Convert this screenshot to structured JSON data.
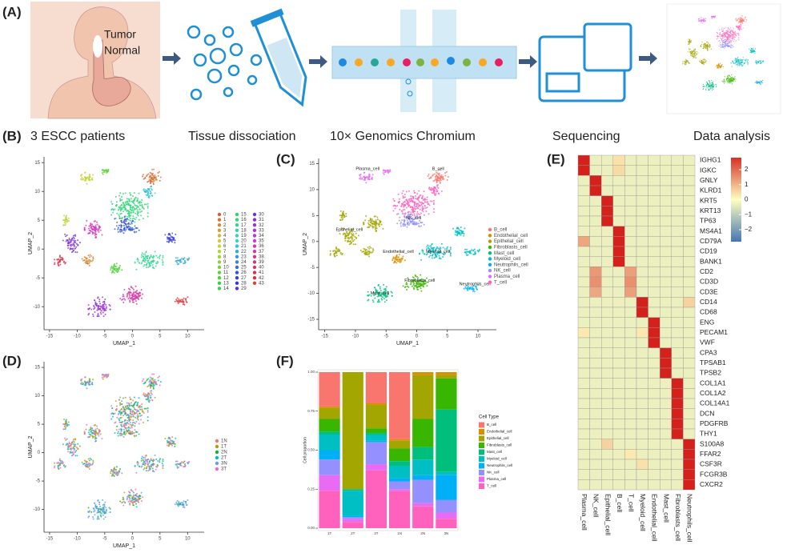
{
  "workflow": {
    "panel_label": "(A)",
    "tumor_label": "Tumor",
    "normal_label": "Normal",
    "steps": [
      "3 ESCC patients",
      "Tissue dissociation",
      "10× Genomics Chromium",
      "Sequencing",
      "Data analysis"
    ]
  },
  "umap_clusters": {
    "panel_label": "(B)",
    "xlabel": "UMAP_1",
    "ylabel": "UMAP_2",
    "xlim": [
      -16,
      13
    ],
    "ylim": [
      -14,
      16
    ],
    "xticks": [
      -15,
      -10,
      -5,
      0,
      5,
      10
    ],
    "yticks": [
      -10,
      -5,
      0,
      5,
      10,
      15
    ],
    "legend": [
      "0",
      "1",
      "2",
      "3",
      "4",
      "5",
      "6",
      "7",
      "8",
      "9",
      "10",
      "11",
      "12",
      "13",
      "14",
      "15",
      "16",
      "17",
      "18",
      "19",
      "20",
      "21",
      "22",
      "23",
      "24",
      "25",
      "26",
      "27",
      "28",
      "29",
      "30",
      "31",
      "32",
      "33",
      "34",
      "35",
      "36",
      "37",
      "38",
      "39",
      "40",
      "41",
      "42",
      "43"
    ]
  },
  "umap_celltypes": {
    "panel_label": "(C)",
    "xlabel": "UMAP_1",
    "ylabel": "UMAP_2",
    "xlim": [
      -16,
      13
    ],
    "ylim": [
      -17,
      16
    ],
    "xticks": [
      -15,
      -10,
      -5,
      0,
      5,
      10
    ],
    "yticks": [
      -15,
      -10,
      -5,
      0,
      5,
      10,
      15
    ],
    "legend": [
      "B_cell",
      "Endothelial_cell",
      "Epithelial_cell",
      "Fibroblasts_cell",
      "Mast_cell",
      "Myeloid_cell",
      "Neutrophils_cell",
      "NK_cell",
      "Plasma_cell",
      "T_cell"
    ],
    "colors": [
      "#F8766D",
      "#D89000",
      "#A3A500",
      "#39B600",
      "#00BF7D",
      "#00BFC4",
      "#00B0F6",
      "#9590FF",
      "#E76BF3",
      "#FF62BC"
    ],
    "annotations": [
      "Plasma_cell",
      "B_cell",
      "NK_cell",
      "Epithelial_cell",
      "Endothelial_cell",
      "Myeloid_cell",
      "Mast_cell",
      "Fibroblasts_cell",
      "Neutrophils_cell"
    ]
  },
  "umap_samples": {
    "panel_label": "(D)",
    "xlabel": "UMAP_1",
    "ylabel": "UMAP_2",
    "xlim": [
      -16,
      13
    ],
    "ylim": [
      -14,
      16
    ],
    "xticks": [
      -15,
      -10,
      -5,
      0,
      5,
      10
    ],
    "yticks": [
      -10,
      -5,
      0,
      5,
      10,
      15
    ],
    "legend": [
      "1N",
      "1T",
      "2N",
      "2T",
      "3N",
      "3T"
    ],
    "colors": [
      "#F8766D",
      "#B79F00",
      "#00BA38",
      "#00BFC4",
      "#619CFF",
      "#F564E3"
    ]
  },
  "heatmap": {
    "panel_label": "(E)",
    "genes": [
      "IGHG1",
      "IGKC",
      "GNLY",
      "KLRD1",
      "KRT5",
      "KRT13",
      "TP63",
      "MS4A1",
      "CD79A",
      "CD19",
      "BANK1",
      "CD2",
      "CD3D",
      "CD3E",
      "CD14",
      "CD68",
      "ENG",
      "PECAM1",
      "VWF",
      "CPA3",
      "TPSAB1",
      "TPSB2",
      "COL1A1",
      "COL1A2",
      "COL14A1",
      "DCN",
      "PDGFRB",
      "THY1",
      "S100A8",
      "FFAR2",
      "CSF3R",
      "FCGR3B",
      "CXCR2"
    ],
    "cell_types": [
      "Plasma_cell",
      "NK_cell",
      "Epithelial_cell",
      "B_cell",
      "T_cell",
      "Myeloid_cell",
      "Endothelial_cell",
      "Mast_cell",
      "Fibroblasts_cell",
      "Neutrophils_cell"
    ],
    "values": [
      [
        3,
        -0.3,
        -0.3,
        0.4,
        -0.3,
        -0.3,
        -0.3,
        -0.3,
        -0.3,
        -0.3
      ],
      [
        3,
        -0.3,
        -0.3,
        0.5,
        -0.3,
        -0.3,
        -0.3,
        -0.3,
        -0.3,
        -0.3
      ],
      [
        -0.3,
        3,
        -0.3,
        -0.3,
        -0.3,
        -0.3,
        -0.3,
        -0.3,
        -0.3,
        -0.3
      ],
      [
        -0.3,
        3,
        -0.3,
        -0.3,
        -0.3,
        -0.3,
        -0.3,
        -0.3,
        -0.3,
        -0.3
      ],
      [
        -0.3,
        -0.3,
        3,
        -0.3,
        -0.3,
        -0.3,
        -0.3,
        -0.3,
        -0.3,
        -0.3
      ],
      [
        -0.3,
        -0.3,
        3,
        -0.3,
        -0.3,
        -0.3,
        -0.3,
        -0.3,
        -0.3,
        -0.3
      ],
      [
        -0.3,
        -0.3,
        3,
        -0.3,
        -0.3,
        -0.3,
        -0.3,
        -0.3,
        -0.3,
        -0.3
      ],
      [
        -0.3,
        -0.3,
        -0.3,
        3,
        -0.3,
        -0.3,
        -0.3,
        -0.3,
        -0.3,
        -0.3
      ],
      [
        1.2,
        -0.3,
        -0.3,
        3,
        -0.3,
        -0.3,
        -0.3,
        -0.3,
        -0.3,
        -0.3
      ],
      [
        -0.3,
        -0.3,
        -0.3,
        3,
        -0.3,
        -0.3,
        -0.3,
        -0.3,
        -0.3,
        -0.3
      ],
      [
        -0.3,
        -0.3,
        -0.3,
        3,
        -0.3,
        -0.3,
        -0.3,
        -0.3,
        -0.3,
        -0.3
      ],
      [
        -0.3,
        1.4,
        -0.3,
        -0.3,
        1.3,
        -0.3,
        -0.3,
        -0.3,
        -0.3,
        -0.3
      ],
      [
        -0.3,
        1.5,
        -0.3,
        -0.3,
        1.5,
        -0.3,
        -0.3,
        -0.3,
        -0.3,
        -0.3
      ],
      [
        -0.3,
        1.2,
        -0.3,
        -0.3,
        1.3,
        -0.3,
        -0.3,
        -0.3,
        -0.3,
        -0.3
      ],
      [
        -0.3,
        -0.3,
        -0.3,
        -0.3,
        -0.3,
        3,
        -0.3,
        -0.3,
        -0.3,
        0.6
      ],
      [
        -0.3,
        -0.3,
        -0.3,
        -0.3,
        -0.3,
        3,
        -0.3,
        -0.3,
        -0.3,
        -0.3
      ],
      [
        -0.3,
        -0.3,
        -0.3,
        -0.3,
        -0.3,
        -0.3,
        3,
        -0.3,
        -0.3,
        -0.3
      ],
      [
        0.3,
        -0.3,
        -0.3,
        -0.3,
        -0.3,
        0.3,
        3,
        -0.3,
        -0.3,
        -0.3
      ],
      [
        -0.3,
        -0.3,
        -0.3,
        -0.3,
        -0.3,
        -0.3,
        3,
        -0.3,
        -0.3,
        -0.3
      ],
      [
        -0.3,
        -0.3,
        -0.3,
        -0.3,
        -0.3,
        -0.3,
        -0.3,
        3,
        -0.3,
        -0.3
      ],
      [
        -0.3,
        -0.3,
        -0.3,
        -0.3,
        -0.3,
        -0.3,
        -0.3,
        3,
        -0.3,
        -0.3
      ],
      [
        -0.3,
        -0.3,
        -0.3,
        -0.3,
        -0.3,
        -0.3,
        -0.3,
        3,
        -0.3,
        -0.3
      ],
      [
        -0.3,
        -0.3,
        -0.3,
        -0.3,
        -0.3,
        -0.3,
        -0.3,
        -0.3,
        3,
        -0.3
      ],
      [
        -0.3,
        -0.3,
        -0.3,
        -0.3,
        -0.3,
        -0.3,
        -0.3,
        -0.3,
        3,
        -0.3
      ],
      [
        -0.3,
        -0.3,
        -0.3,
        -0.3,
        -0.3,
        -0.3,
        -0.3,
        -0.3,
        3,
        -0.3
      ],
      [
        -0.3,
        -0.3,
        -0.3,
        -0.3,
        -0.3,
        -0.3,
        -0.3,
        -0.3,
        3,
        -0.3
      ],
      [
        -0.3,
        -0.3,
        -0.3,
        -0.3,
        -0.3,
        -0.3,
        -0.3,
        -0.3,
        3,
        -0.3
      ],
      [
        -0.3,
        -0.3,
        -0.3,
        -0.3,
        -0.3,
        -0.3,
        -0.3,
        -0.3,
        3,
        -0.3
      ],
      [
        -0.3,
        -0.3,
        0.6,
        -0.3,
        -0.3,
        -0.3,
        -0.3,
        -0.3,
        -0.3,
        3
      ],
      [
        -0.3,
        -0.3,
        -0.3,
        -0.3,
        0.3,
        -0.3,
        -0.3,
        -0.3,
        -0.3,
        3
      ],
      [
        -0.3,
        -0.3,
        -0.3,
        -0.3,
        -0.3,
        0.4,
        -0.3,
        -0.3,
        -0.3,
        3
      ],
      [
        -0.3,
        -0.3,
        -0.3,
        -0.3,
        -0.3,
        -0.3,
        -0.3,
        -0.3,
        -0.3,
        3
      ],
      [
        -0.3,
        -0.3,
        -0.3,
        -0.3,
        -0.3,
        -0.3,
        -0.3,
        -0.3,
        -0.3,
        3
      ]
    ],
    "clim": [
      -2.8,
      2.8
    ],
    "colors": [
      "#4575B4",
      "#FFFFBF",
      "#D73027"
    ],
    "cticks": [
      2,
      1,
      0,
      {
        "value": -1,
        "label": "−1"
      },
      {
        "value": -2,
        "label": "−2"
      }
    ]
  },
  "proportions": {
    "panel_label": "(F)",
    "type": "bar",
    "ylabel": "Cell proportion",
    "legend_title": "Cell Type",
    "categories": [
      "1T",
      "2T",
      "3T",
      "1N",
      "2N",
      "3N"
    ],
    "ylim": [
      0,
      1
    ],
    "yticks": [
      {
        "value": 0,
        "label": "0.00"
      },
      {
        "value": 0.25,
        "label": "0.25"
      },
      {
        "value": 0.5,
        "label": "0.50"
      },
      {
        "value": 0.75,
        "label": "0.75"
      },
      {
        "value": 1,
        "label": "1.00"
      }
    ],
    "series": [
      {
        "name": "B_cell",
        "color": "#F8766D",
        "values": [
          0.22,
          0,
          0.2,
          0.43,
          0,
          0
        ]
      },
      {
        "name": "Endothelial_cell",
        "color": "#D89000",
        "values": [
          0.01,
          0,
          0.01,
          0.01,
          0.02,
          0.02
        ]
      },
      {
        "name": "Epithelial_cell",
        "color": "#A3A500",
        "values": [
          0.07,
          0.75,
          0.15,
          0.05,
          0.28,
          0.02
        ]
      },
      {
        "name": "Fibroblasts_cell",
        "color": "#39B600",
        "values": [
          0.08,
          0,
          0.03,
          0.08,
          0.18,
          0.2
        ]
      },
      {
        "name": "Mast_cell",
        "color": "#00BF7D",
        "values": [
          0.02,
          0.01,
          0.01,
          0.03,
          0.08,
          0.4
        ]
      },
      {
        "name": "Myeloid_cell",
        "color": "#00BFC4",
        "values": [
          0.1,
          0.16,
          0.04,
          0.08,
          0.1,
          0.02
        ]
      },
      {
        "name": "Neutrophils_cell",
        "color": "#00B0F6",
        "values": [
          0.06,
          0.01,
          0.01,
          0.02,
          0.03,
          0.16
        ]
      },
      {
        "name": "NK_cell",
        "color": "#9590FF",
        "values": [
          0.1,
          0.01,
          0.14,
          0.05,
          0.15,
          0.08
        ]
      },
      {
        "name": "Plasma_cell",
        "color": "#E76BF3",
        "values": [
          0.1,
          0.02,
          0.04,
          0.01,
          0.02,
          0.04
        ]
      },
      {
        "name": "T_cell",
        "color": "#FF62BC",
        "values": [
          0.24,
          0.04,
          0.37,
          0.24,
          0.14,
          0.06
        ]
      }
    ]
  }
}
